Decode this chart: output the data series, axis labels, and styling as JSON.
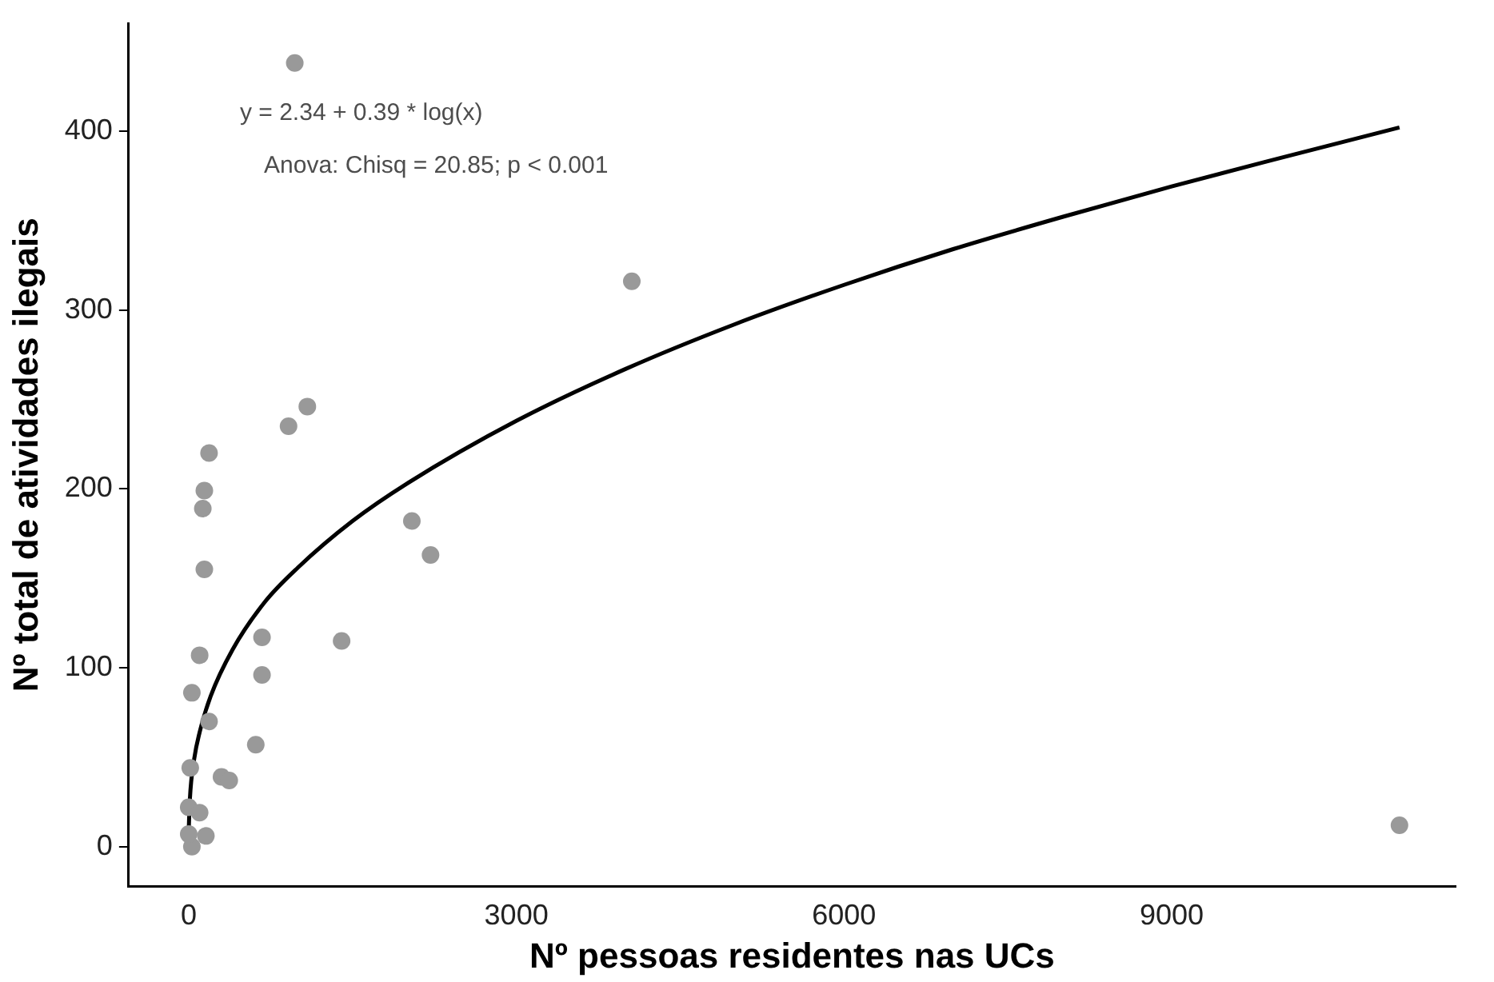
{
  "chart_data": {
    "type": "scatter",
    "xlabel": "Nº pessoas residentes nas UCs",
    "ylabel": "Nº total de atividades ilegais",
    "annotations": [
      "y = 2.34 + 0.39 * log(x)",
      "Anova: Chisq = 20.85; p < 0.001"
    ],
    "xlim": [
      -550,
      11600
    ],
    "xticks": [
      0,
      3000,
      6000,
      9000
    ],
    "ylim": [
      -22,
      460
    ],
    "yticks": [
      0,
      100,
      200,
      300,
      400
    ],
    "grid": false,
    "legend": false,
    "marker": "circle",
    "series": [
      {
        "color": "#999999",
        "x": [
          971,
          4057,
          1086,
          914,
          186,
          143,
          129,
          143,
          2043,
          2214,
          671,
          1400,
          100,
          671,
          29,
          186,
          614,
          14,
          300,
          371,
          0,
          100,
          143,
          157,
          29,
          0,
          11086
        ],
        "values": [
          438,
          316,
          246,
          235,
          220,
          199,
          189,
          155,
          182,
          163,
          117,
          115,
          107,
          96,
          86,
          70,
          57,
          44,
          39,
          37,
          22,
          19,
          null,
          6,
          0,
          7,
          12
        ]
      },
      {
        "type": "line",
        "color": "#000000",
        "marker": "none",
        "x": [
          1,
          10,
          50,
          100,
          200,
          400,
          700,
          1000,
          1500,
          2000,
          3000,
          4000,
          5000,
          6000,
          7000,
          8000,
          9000,
          10000,
          11086
        ],
        "values": [
          11,
          26,
          49,
          64,
          84,
          110,
          137,
          156,
          182,
          203,
          238,
          267,
          292,
          314,
          334,
          352,
          369,
          385,
          402
        ]
      }
    ]
  }
}
